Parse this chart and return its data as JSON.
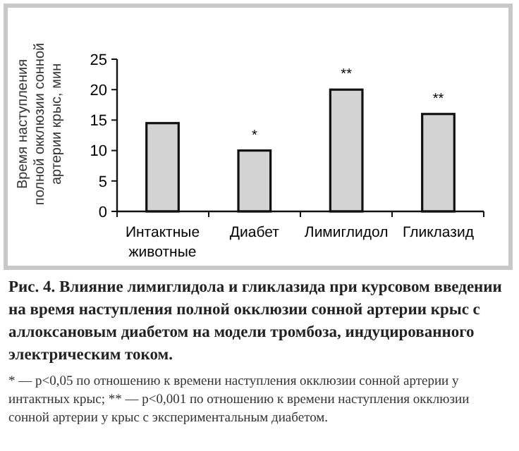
{
  "chart_data": {
    "type": "bar",
    "title": "Рис. 4. Влияние лимиглидола и гликлазида при курсовом введении на время наступления полной окклюзии сонной артерии крыс с аллоксановым диабетом на модели тромбоза, индуцированного электрическим током.",
    "ylabel": "Время наступления полной окклюзии сонной артерии крыс, мин",
    "categories": [
      "Интактные животные",
      "Диабет",
      "Лимиглидол",
      "Гликлазид"
    ],
    "values": [
      14.5,
      10,
      20,
      16
    ],
    "color": "#d3d3d3",
    "ylim": [
      0,
      25
    ],
    "yticks": [
      0,
      5,
      10,
      15,
      20,
      25
    ],
    "grid": false,
    "annotations": [
      {
        "text": "*",
        "x": "Диабет",
        "y": 10
      },
      {
        "text": "**",
        "x": "Лимиглидол",
        "y": 20
      },
      {
        "text": "**",
        "x": "Гликлазид",
        "y": 16
      },
      "* — p<0,05 по отношению к времени наступления окклюзии сонной артерии у интактных крыс; ** — p<0,001 по отношению к времени наступления окклюзии сонной артерии у крыс с экспериментальным диабетом."
    ]
  }
}
